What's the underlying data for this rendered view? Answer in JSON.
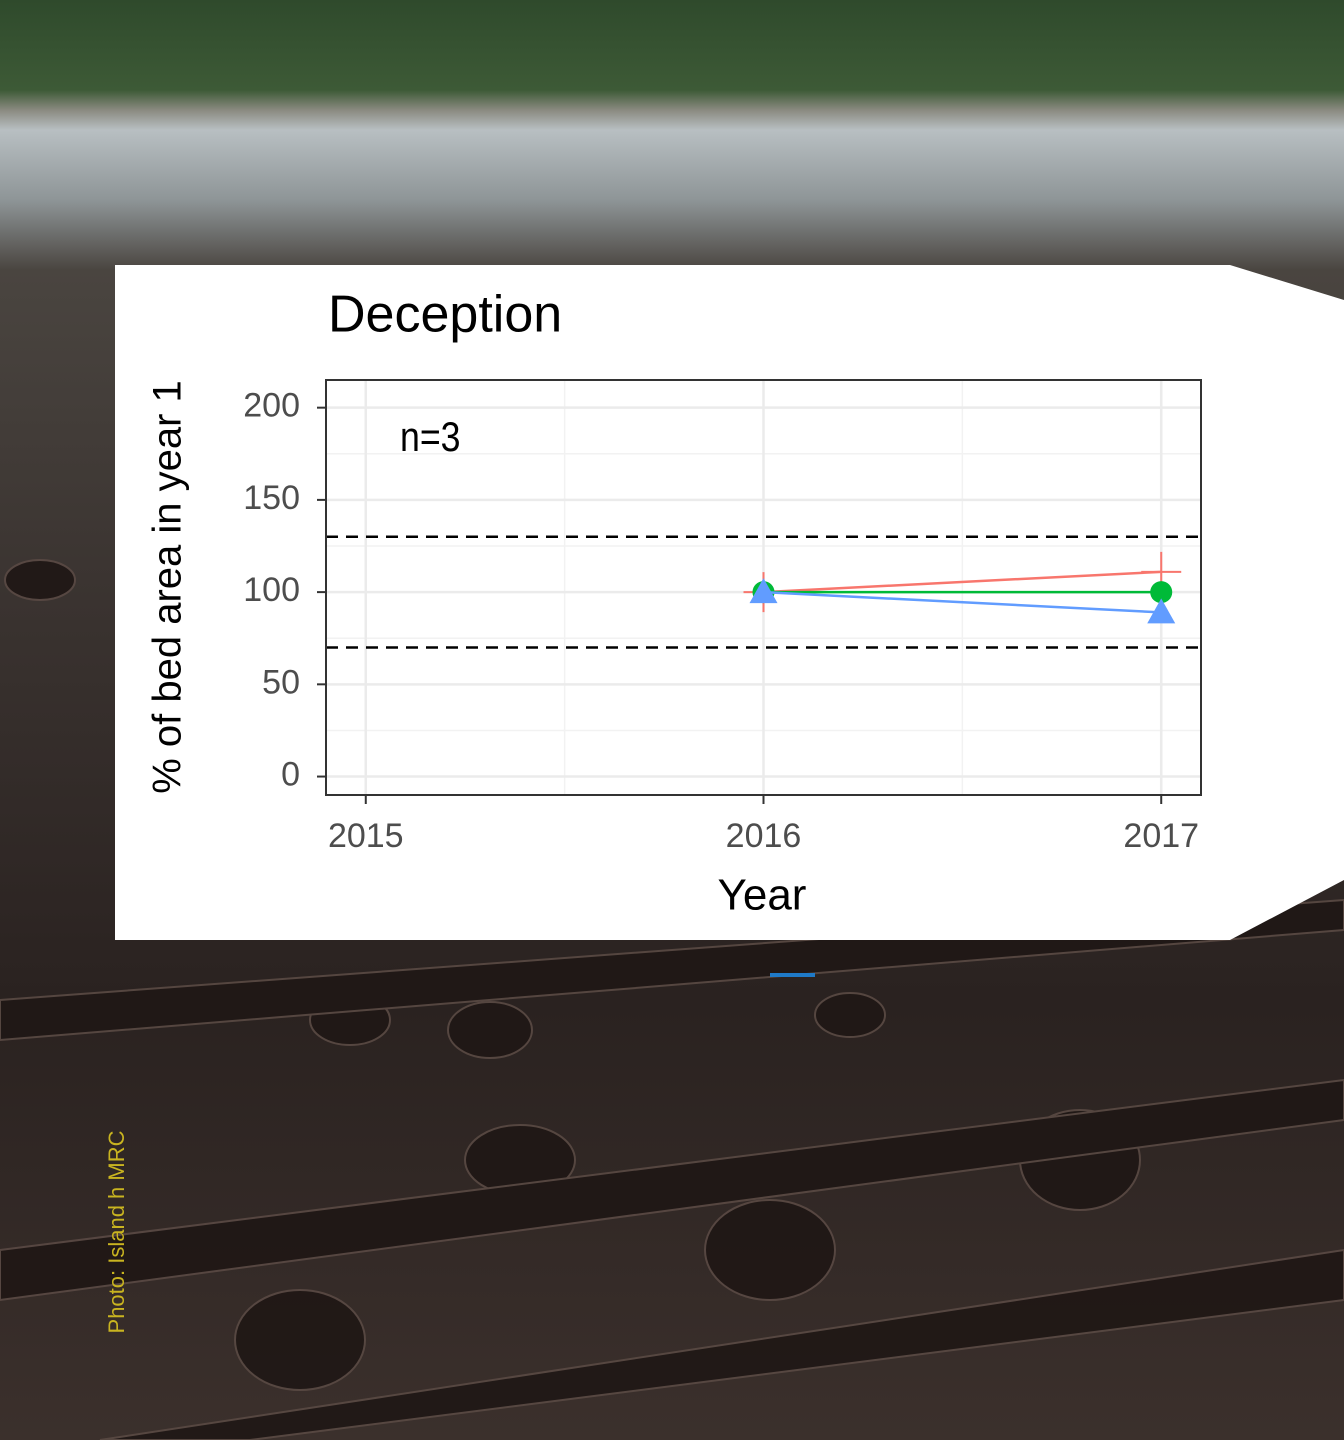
{
  "chart_data": {
    "type": "line",
    "title": "Deception",
    "x_label": "Year",
    "y_label": "% of bed area in year 1",
    "annotation": "n=3",
    "x": [
      2016,
      2017
    ],
    "series": [
      {
        "color": "#f8766d",
        "marker": "plus",
        "values": [
          100,
          111
        ]
      },
      {
        "color": "#00ba38",
        "marker": "circle",
        "values": [
          100,
          100
        ]
      },
      {
        "color": "#619cff",
        "marker": "triangle",
        "values": [
          100,
          89
        ]
      }
    ],
    "reference_lines": [
      70,
      130
    ],
    "xlim": [
      2014.9,
      2017.1
    ],
    "xticks": [
      2015,
      2016,
      2017
    ],
    "xminor": [
      2015.5,
      2016.5
    ],
    "ylim": [
      -10,
      215
    ],
    "yticks": [
      0,
      50,
      100,
      150,
      200
    ],
    "yminor": [
      25,
      75,
      125,
      175
    ],
    "grid": true
  },
  "photo_credit": "Photo: Island h MRC"
}
